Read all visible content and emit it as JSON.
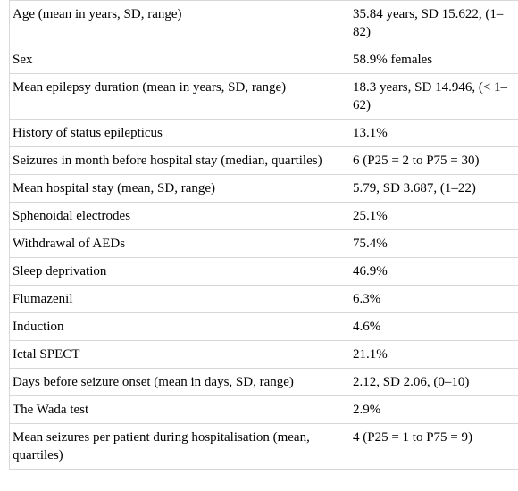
{
  "table": {
    "rows": [
      {
        "label": "Age (mean in years, SD, range)",
        "value": "35.84 years, SD 15.622, (1–82)"
      },
      {
        "label": "Sex",
        "value": "58.9% females"
      },
      {
        "label": "Mean epilepsy duration (mean in years, SD, range)",
        "value": "18.3 years, SD 14.946, (< 1–62)"
      },
      {
        "label": "History of status epilepticus",
        "value": "13.1%"
      },
      {
        "label": "Seizures in month before hospital stay (median, quartiles)",
        "value": "6 (P25 = 2 to P75 = 30)"
      },
      {
        "label": "Mean hospital stay (mean, SD, range)",
        "value": "5.79, SD 3.687, (1–22)"
      },
      {
        "label": "Sphenoidal electrodes",
        "value": "25.1%"
      },
      {
        "label": "Withdrawal of AEDs",
        "value": "75.4%"
      },
      {
        "label": "Sleep deprivation",
        "value": "46.9%"
      },
      {
        "label": "Flumazenil",
        "value": "6.3%"
      },
      {
        "label": "Induction",
        "value": "4.6%"
      },
      {
        "label": "Ictal SPECT",
        "value": "21.1%"
      },
      {
        "label": "Days before seizure onset (mean in days, SD, range)",
        "value": "2.12, SD 2.06, (0–10)"
      },
      {
        "label": "The Wada test",
        "value": "2.9%"
      },
      {
        "label": "Mean seizures per patient during hospitalisation (mean, quartiles)",
        "value": "4 (P25 = 1 to P75 = 9)"
      }
    ]
  }
}
